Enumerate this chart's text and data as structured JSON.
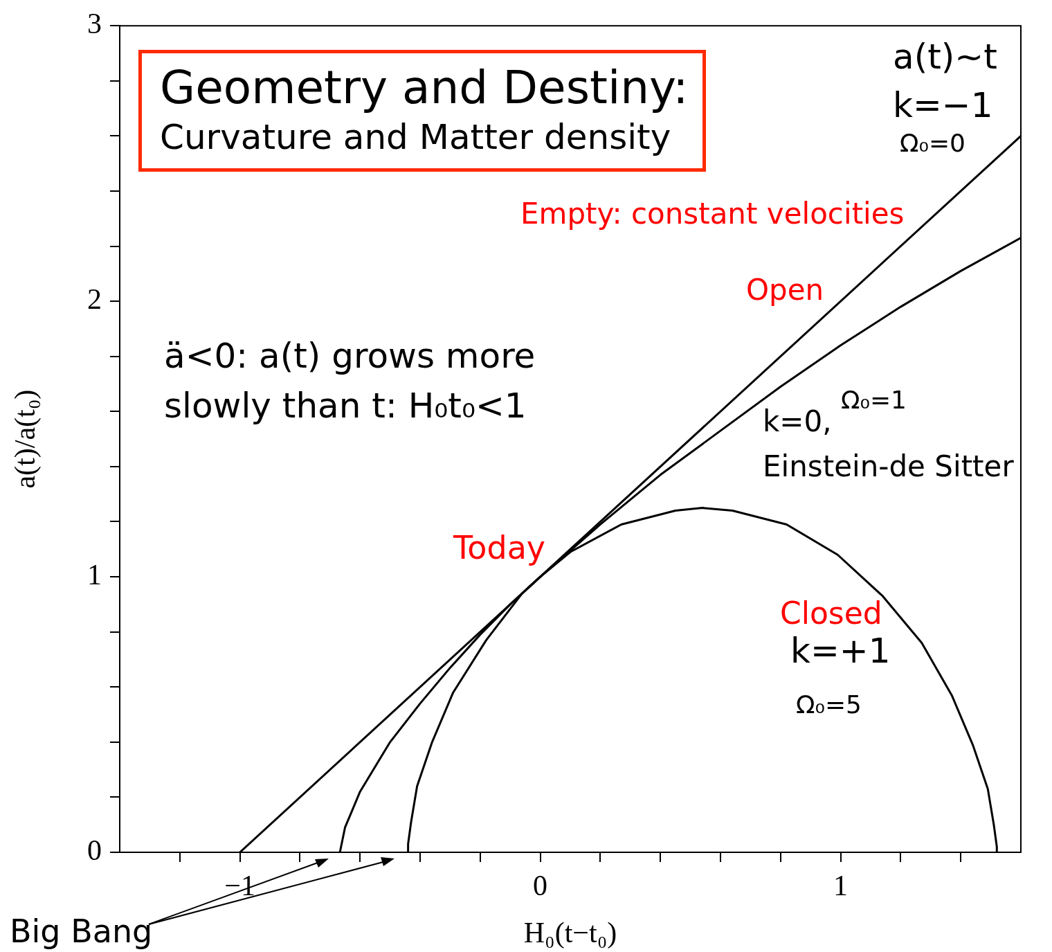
{
  "chart_data": {
    "type": "line",
    "title": "Geometry and Destiny:",
    "subtitle": "Curvature and Matter density",
    "xlabel": "H₀(t−t₀)",
    "ylabel": "a(t)/a(t₀)",
    "xlim": [
      -1.4,
      1.6
    ],
    "ylim": [
      0,
      3
    ],
    "xticks": [
      {
        "value": -1.2,
        "label": null
      },
      {
        "value": -1,
        "label": "−1"
      },
      {
        "value": -0.8,
        "label": null
      },
      {
        "value": -0.6,
        "label": null
      },
      {
        "value": -0.4,
        "label": null
      },
      {
        "value": -0.2,
        "label": null
      },
      0,
      {
        "value": 0.2,
        "label": null
      },
      {
        "value": 0.4,
        "label": null
      },
      {
        "value": 0.6,
        "label": null
      },
      {
        "value": 0.8,
        "label": null
      },
      1,
      {
        "value": 1.2,
        "label": null
      },
      {
        "value": 1.4,
        "label": null
      }
    ],
    "yticks": [
      0,
      {
        "value": 0.2,
        "label": null
      },
      {
        "value": 0.4,
        "label": null
      },
      {
        "value": 0.6,
        "label": null
      },
      {
        "value": 0.8,
        "label": null
      },
      1,
      {
        "value": 1.2,
        "label": null
      },
      {
        "value": 1.4,
        "label": null
      },
      {
        "value": 1.6,
        "label": null
      },
      {
        "value": 1.8,
        "label": null
      },
      2,
      {
        "value": 2.2,
        "label": null
      },
      {
        "value": 2.4,
        "label": null
      },
      {
        "value": 2.6,
        "label": null
      },
      {
        "value": 2.8,
        "label": null
      },
      3
    ],
    "grid": false,
    "legend": false,
    "marker": "none",
    "series": [
      {
        "color": "#000000",
        "x": [
          -1,
          1.6
        ],
        "values": [
          0,
          2.6
        ]
      },
      {
        "color": "#000000",
        "x": [
          -0.667,
          -0.65,
          -0.6,
          -0.5,
          -0.4,
          -0.3,
          -0.2,
          -0.1,
          0,
          0.2,
          0.4,
          0.6,
          0.8,
          1.0,
          1.2,
          1.4,
          1.6
        ],
        "values": [
          0,
          0.09,
          0.22,
          0.4,
          0.54,
          0.67,
          0.79,
          0.9,
          1,
          1.19,
          1.37,
          1.53,
          1.69,
          1.84,
          1.98,
          2.11,
          2.23
        ]
      },
      {
        "color": "#000000",
        "x": [
          -0.44,
          -0.44,
          -0.43,
          -0.41,
          -0.36,
          -0.29,
          -0.18,
          -0.06,
          0,
          0.1,
          0.27,
          0.45,
          0.54,
          0.64,
          0.82,
          0.99,
          1.14,
          1.27,
          1.37,
          1.44,
          1.49,
          1.51,
          1.52,
          1.52
        ],
        "values": [
          0,
          0.03,
          0.11,
          0.24,
          0.4,
          0.58,
          0.77,
          0.94,
          1,
          1.09,
          1.19,
          1.24,
          1.25,
          1.24,
          1.19,
          1.08,
          0.93,
          0.76,
          0.57,
          0.39,
          0.23,
          0.1,
          0.02,
          0
        ]
      }
    ],
    "annotations": [
      "a(t)~t",
      "k=−1",
      "Ω₀=0",
      "Empty: constant velocities",
      "Open",
      "Ω₀=1",
      "k=0,",
      "Einstein-de Sitter",
      "Today",
      "Closed",
      "k=+1",
      "Ω₀=5",
      "ä<0: a(t) grows more slowly than t: H₀t₀<1",
      "Big Bang"
    ]
  }
}
